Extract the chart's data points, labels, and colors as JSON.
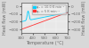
{
  "title": "",
  "xlabel": "Temperature (°C)",
  "ylabel_left": "Heat flow (mW)",
  "ylabel_right": "Heat flow (mW)",
  "x_start": 300,
  "x_end": 700,
  "xlim": [
    300,
    700
  ],
  "ylim_left": [
    -350,
    50
  ],
  "ylim_right": [
    -350,
    50
  ],
  "background_color": "#d8d8d8",
  "plot_bg_color": "#e8e8e8",
  "legend_labels": [
    "φ₁ = 10.0 K·min⁻¹",
    "φ₂ = 5 K·min⁻¹"
  ],
  "line1_color": "#00cfff",
  "line2_color": "#ff3333",
  "grid_color": "#ffffff",
  "tick_color": "#666666",
  "label_color": "#666666",
  "curie_temp": 358,
  "font_size": 3.5
}
